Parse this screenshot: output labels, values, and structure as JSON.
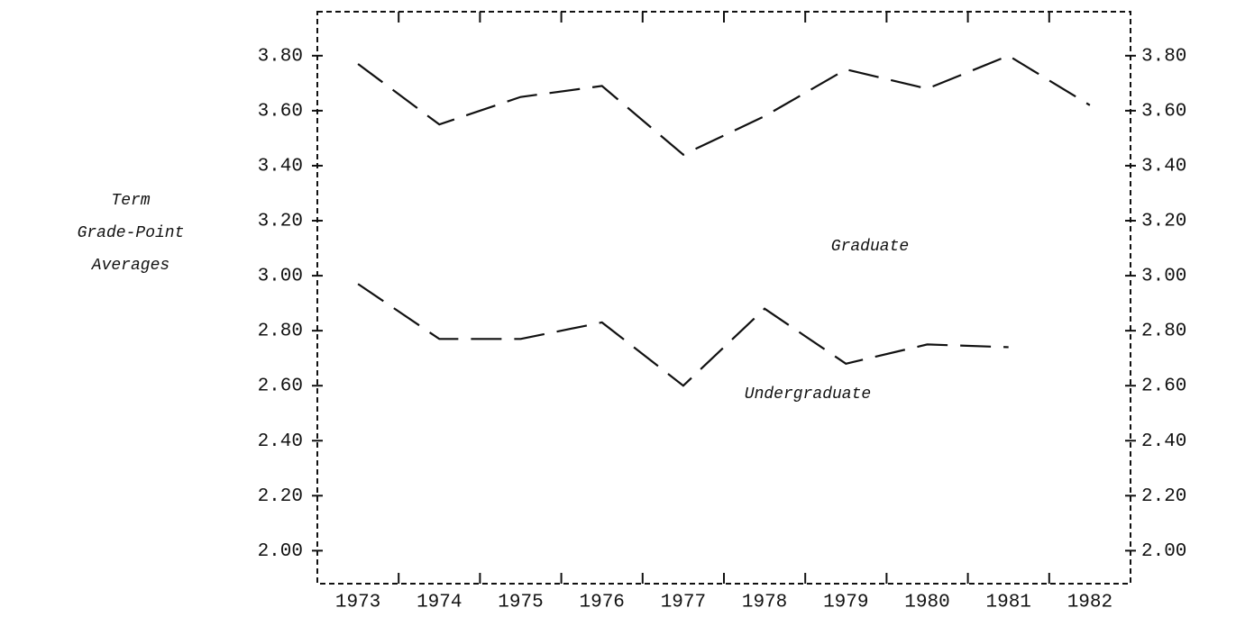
{
  "chart_data": {
    "type": "line",
    "ylabel": [
      "Term",
      "Grade-Point",
      "Averages"
    ],
    "categories": [
      "1973",
      "1974",
      "1975",
      "1976",
      "1977",
      "1978",
      "1979",
      "1980",
      "1981",
      "1982"
    ],
    "series": [
      {
        "name": "Graduate",
        "color": "#111111",
        "values": [
          3.77,
          3.55,
          3.65,
          3.69,
          3.44,
          3.58,
          3.75,
          3.68,
          3.8,
          3.62
        ]
      },
      {
        "name": "Undergraduate",
        "color": "#111111",
        "values": [
          2.97,
          2.77,
          2.77,
          2.83,
          2.6,
          2.88,
          2.68,
          2.75,
          2.74,
          null
        ]
      }
    ],
    "ylim": [
      1.88,
      3.96
    ],
    "yticks": [
      {
        "value": 2.0,
        "label": "2.00"
      },
      {
        "value": 2.2,
        "label": "2.20"
      },
      {
        "value": 2.4,
        "label": "2.40"
      },
      {
        "value": 2.6,
        "label": "2.60"
      },
      {
        "value": 2.8,
        "label": "2.80"
      },
      {
        "value": 3.0,
        "label": "3.00"
      },
      {
        "value": 3.2,
        "label": "3.20"
      },
      {
        "value": 3.4,
        "label": "3.40"
      },
      {
        "value": 3.6,
        "label": "3.60"
      },
      {
        "value": 3.8,
        "label": "3.80"
      }
    ],
    "y2lim": [
      1.88,
      3.96
    ],
    "y2ticks": [
      {
        "value": 2.0,
        "label": "2.00"
      },
      {
        "value": 2.2,
        "label": "2.20"
      },
      {
        "value": 2.4,
        "label": "2.40"
      },
      {
        "value": 2.6,
        "label": "2.60"
      },
      {
        "value": 2.8,
        "label": "2.80"
      },
      {
        "value": 3.0,
        "label": "3.00"
      },
      {
        "value": 3.2,
        "label": "3.20"
      },
      {
        "value": 3.4,
        "label": "3.40"
      },
      {
        "value": 3.6,
        "label": "3.60"
      },
      {
        "value": 3.8,
        "label": "3.80"
      }
    ],
    "grid": false
  }
}
